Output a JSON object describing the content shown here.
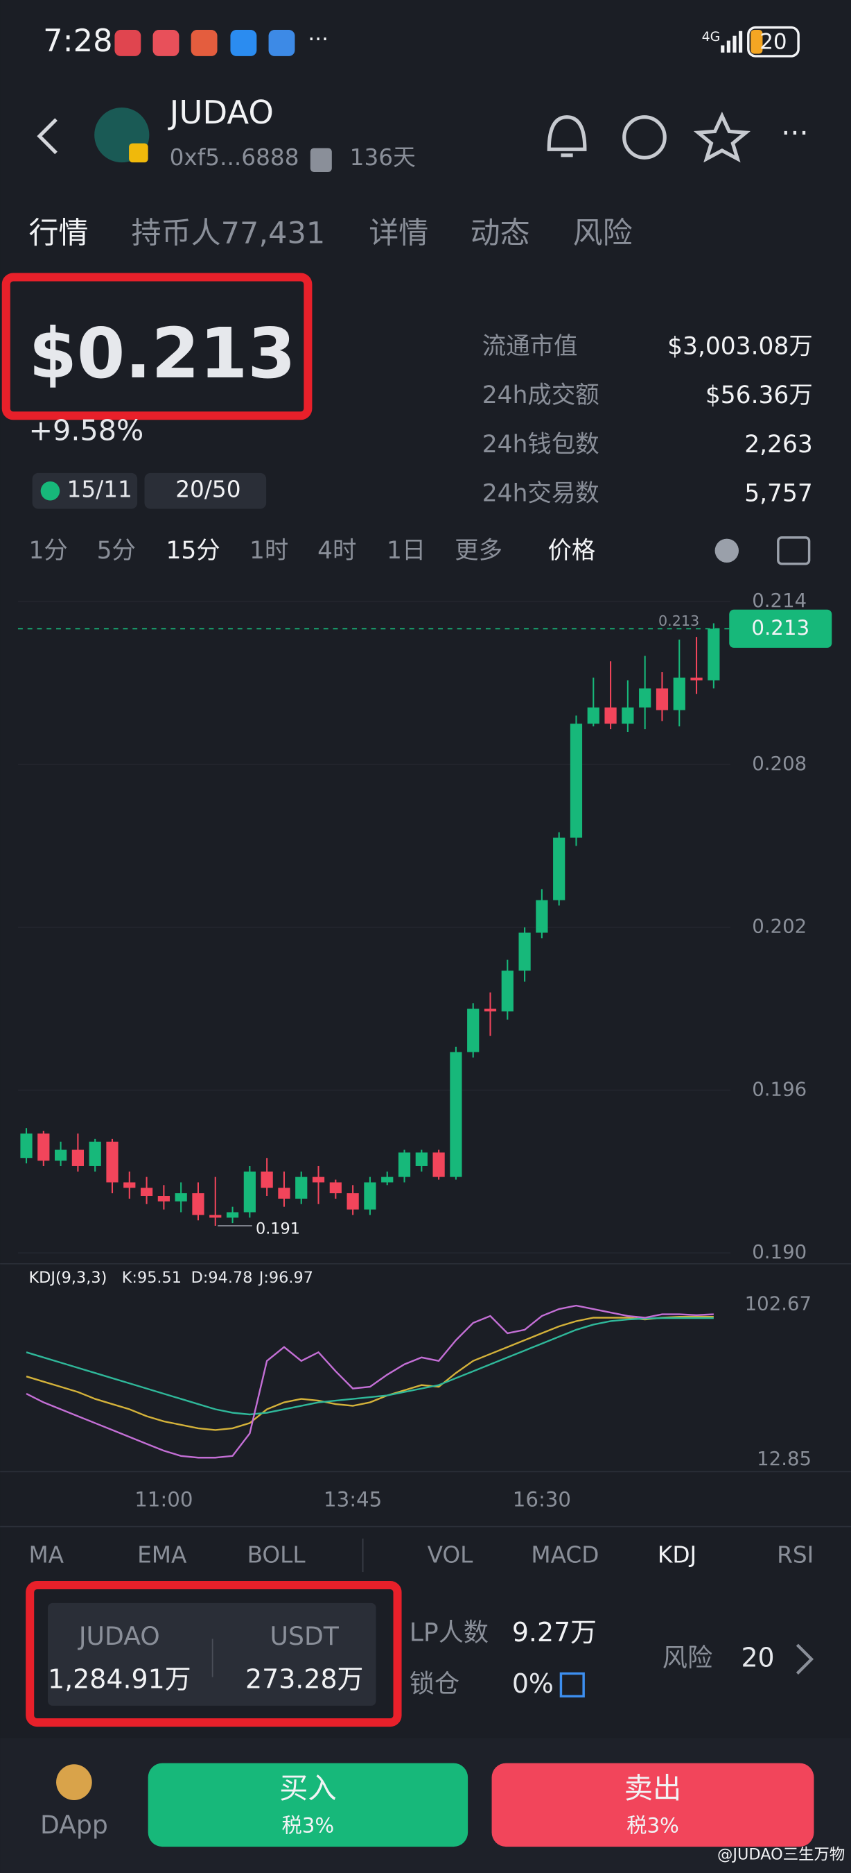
{
  "status_bar": {
    "time": "7:28",
    "network": "4G",
    "battery": "20"
  },
  "header": {
    "name": "JUDAO",
    "address": "0xf5...6888",
    "age": "136天"
  },
  "tabs": [
    "行情",
    "持币人77,431",
    "详情",
    "动态",
    "风险"
  ],
  "price": {
    "value": "$0.213",
    "change": "+9.58%",
    "badge_1": "15/11",
    "badge_2": "20/50"
  },
  "stats": [
    [
      "流通市值",
      "$3,003.08万"
    ],
    [
      "24h成交额",
      "$56.36万"
    ],
    [
      "24h钱包数",
      "2,263"
    ],
    [
      "24h交易数",
      "5,757"
    ]
  ],
  "intervals": [
    "1分",
    "5分",
    "15分",
    "1时",
    "4时",
    "1日",
    "更多",
    "价格"
  ],
  "chart_data": [
    {
      "type": "candlestick",
      "up_color": "#17b87a",
      "down_color": "#f2455b",
      "categories": [
        null,
        null,
        null,
        null,
        null,
        null,
        null,
        null,
        "11:00",
        null,
        null,
        null,
        null,
        null,
        null,
        null,
        null,
        null,
        null,
        "13:45",
        null,
        null,
        null,
        null,
        null,
        null,
        null,
        null,
        null,
        null,
        "16:30",
        null,
        null,
        null,
        null,
        null,
        null,
        null,
        null,
        null,
        null
      ],
      "ohlc": [
        [
          0.1935,
          0.1946,
          0.1933,
          0.1944
        ],
        [
          0.1944,
          0.1945,
          0.1932,
          0.1934
        ],
        [
          0.1934,
          0.1941,
          0.1932,
          0.1938
        ],
        [
          0.1938,
          0.1944,
          0.193,
          0.1932
        ],
        [
          0.1932,
          0.1942,
          0.193,
          0.1941
        ],
        [
          0.1941,
          0.1942,
          0.1922,
          0.1926
        ],
        [
          0.1926,
          0.193,
          0.192,
          0.1924
        ],
        [
          0.1924,
          0.1928,
          0.1918,
          0.1921
        ],
        [
          0.1921,
          0.1925,
          0.1916,
          0.1919
        ],
        [
          0.1919,
          0.1926,
          0.1915,
          0.1922
        ],
        [
          0.1922,
          0.1926,
          0.1912,
          0.1914
        ],
        [
          0.1914,
          0.1928,
          0.191,
          0.1913
        ],
        [
          0.1913,
          0.1917,
          0.1911,
          0.1915
        ],
        [
          0.1915,
          0.1932,
          0.1913,
          0.193
        ],
        [
          0.193,
          0.1935,
          0.1921,
          0.1924
        ],
        [
          0.1924,
          0.193,
          0.1917,
          0.192
        ],
        [
          0.192,
          0.193,
          0.1918,
          0.1928
        ],
        [
          0.1928,
          0.1932,
          0.1918,
          0.1926
        ],
        [
          0.1926,
          0.1927,
          0.192,
          0.1922
        ],
        [
          0.1922,
          0.1925,
          0.1914,
          0.1916
        ],
        [
          0.1916,
          0.1928,
          0.1914,
          0.1926
        ],
        [
          0.1926,
          0.193,
          0.1925,
          0.1928
        ],
        [
          0.1928,
          0.1938,
          0.1926,
          0.1937
        ],
        [
          0.1932,
          0.1938,
          0.193,
          0.1937
        ],
        [
          0.1937,
          0.1938,
          0.1927,
          0.1928
        ],
        [
          0.1928,
          0.1976,
          0.1927,
          0.1974
        ],
        [
          0.1974,
          0.1992,
          0.1972,
          0.199
        ],
        [
          0.199,
          0.1996,
          0.198,
          0.1989
        ],
        [
          0.1989,
          0.2008,
          0.1986,
          0.2004
        ],
        [
          0.2004,
          0.202,
          0.2,
          0.2018
        ],
        [
          0.2018,
          0.2034,
          0.2016,
          0.203
        ],
        [
          0.203,
          0.2055,
          0.2028,
          0.2053
        ],
        [
          0.2053,
          0.2098,
          0.205,
          0.2095
        ],
        [
          0.2095,
          0.2112,
          0.2094,
          0.2101
        ],
        [
          0.2101,
          0.2118,
          0.2093,
          0.2095
        ],
        [
          0.2095,
          0.2111,
          0.2092,
          0.2101
        ],
        [
          0.2101,
          0.212,
          0.2093,
          0.2108
        ],
        [
          0.2108,
          0.2114,
          0.2096,
          0.21
        ],
        [
          0.21,
          0.2126,
          0.2094,
          0.2112
        ],
        [
          0.2112,
          0.2127,
          0.2106,
          0.2111
        ],
        [
          0.2111,
          0.2132,
          0.2108,
          0.213
        ]
      ],
      "low_marker": 0.191,
      "last_price": 0.213,
      "ylim": [
        0.1896,
        0.2146
      ],
      "yticks": [
        0.214,
        0.208,
        0.202,
        0.196,
        {
          "value": 0.19,
          "label": "0.190"
        }
      ]
    },
    {
      "type": "line",
      "title": "KDJ(9,3,3)",
      "series": [
        {
          "name": "K:95.51",
          "color": "#d4b23a",
          "values": [
            61,
            58,
            55,
            52,
            48,
            45,
            42,
            38,
            35,
            33,
            31,
            30,
            31,
            34,
            42,
            46,
            48,
            47,
            45,
            44,
            46,
            50,
            53,
            56,
            55,
            63,
            70,
            74,
            78,
            82,
            86,
            90,
            93,
            95,
            95,
            95,
            94,
            95,
            95.5,
            95.6,
            95.51
          ]
        },
        {
          "name": "D:94.78",
          "color": "#2fb89a",
          "values": [
            75,
            72,
            69,
            66,
            63,
            60,
            57,
            54,
            51,
            48,
            45,
            42,
            40,
            39,
            40,
            42,
            44,
            46,
            47,
            48,
            49,
            50,
            52,
            54,
            56,
            60,
            64,
            68,
            72,
            76,
            80,
            84,
            88,
            91,
            93,
            94,
            94.5,
            94.8,
            94.8,
            94.8,
            94.78
          ]
        },
        {
          "name": "J:96.97",
          "color": "#c46fd6",
          "values": [
            51,
            46,
            42,
            38,
            34,
            30,
            26,
            22,
            18,
            15,
            14,
            14,
            15,
            28,
            70,
            78,
            70,
            75,
            64,
            54,
            55,
            62,
            68,
            72,
            70,
            82,
            92,
            96,
            86,
            88,
            96,
            100,
            102,
            100,
            98,
            96,
            95,
            97,
            97,
            96.5,
            96.97
          ]
        }
      ],
      "ylim": [
        5.9,
        109.6
      ],
      "yticks": [
        102.67,
        12.85
      ]
    }
  ],
  "indicators": [
    "MA",
    "EMA",
    "BOLL",
    "VOL",
    "MACD",
    "KDJ",
    "RSI"
  ],
  "pool": {
    "token_a": "JUDAO",
    "amount_a": "1,284.91万",
    "token_b": "USDT",
    "amount_b": "273.28万",
    "lp_label": "LP人数",
    "lp_value": "9.27万",
    "lock_label": "锁仓",
    "lock_value": "0%",
    "risk_label": "风险",
    "risk_value": "20"
  },
  "bottom": {
    "dapp": "DApp",
    "buy": "买入",
    "buy_tax": "税3%",
    "sell": "卖出",
    "sell_tax": "税3%",
    "watermark": "@JUDAO三生万物"
  }
}
